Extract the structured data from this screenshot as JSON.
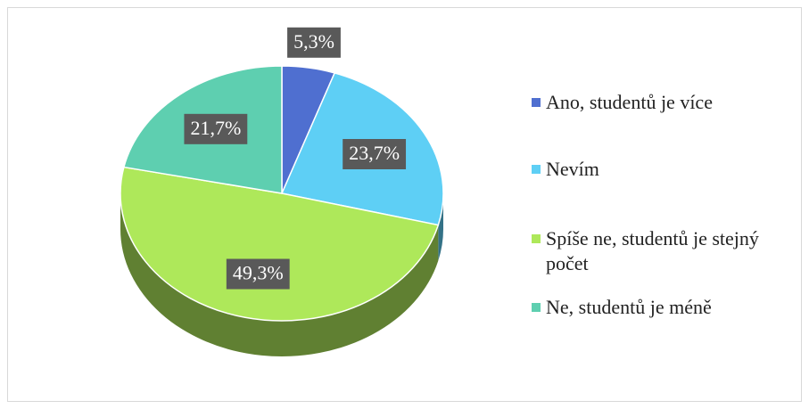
{
  "chart_data": {
    "type": "pie",
    "categories": [
      "Ano, studentů je více",
      "Nevím",
      "Spíše ne, studentů je stejný počet",
      "Ne, studentů je méně"
    ],
    "values": [
      5.3,
      23.7,
      49.3,
      21.7
    ],
    "value_labels": [
      "5,3%",
      "23,7%",
      "49,3%",
      "21,7%"
    ],
    "colors": [
      "#4f6fd0",
      "#5ecff5",
      "#aee85a",
      "#5ecfb0"
    ],
    "legend": "right"
  }
}
